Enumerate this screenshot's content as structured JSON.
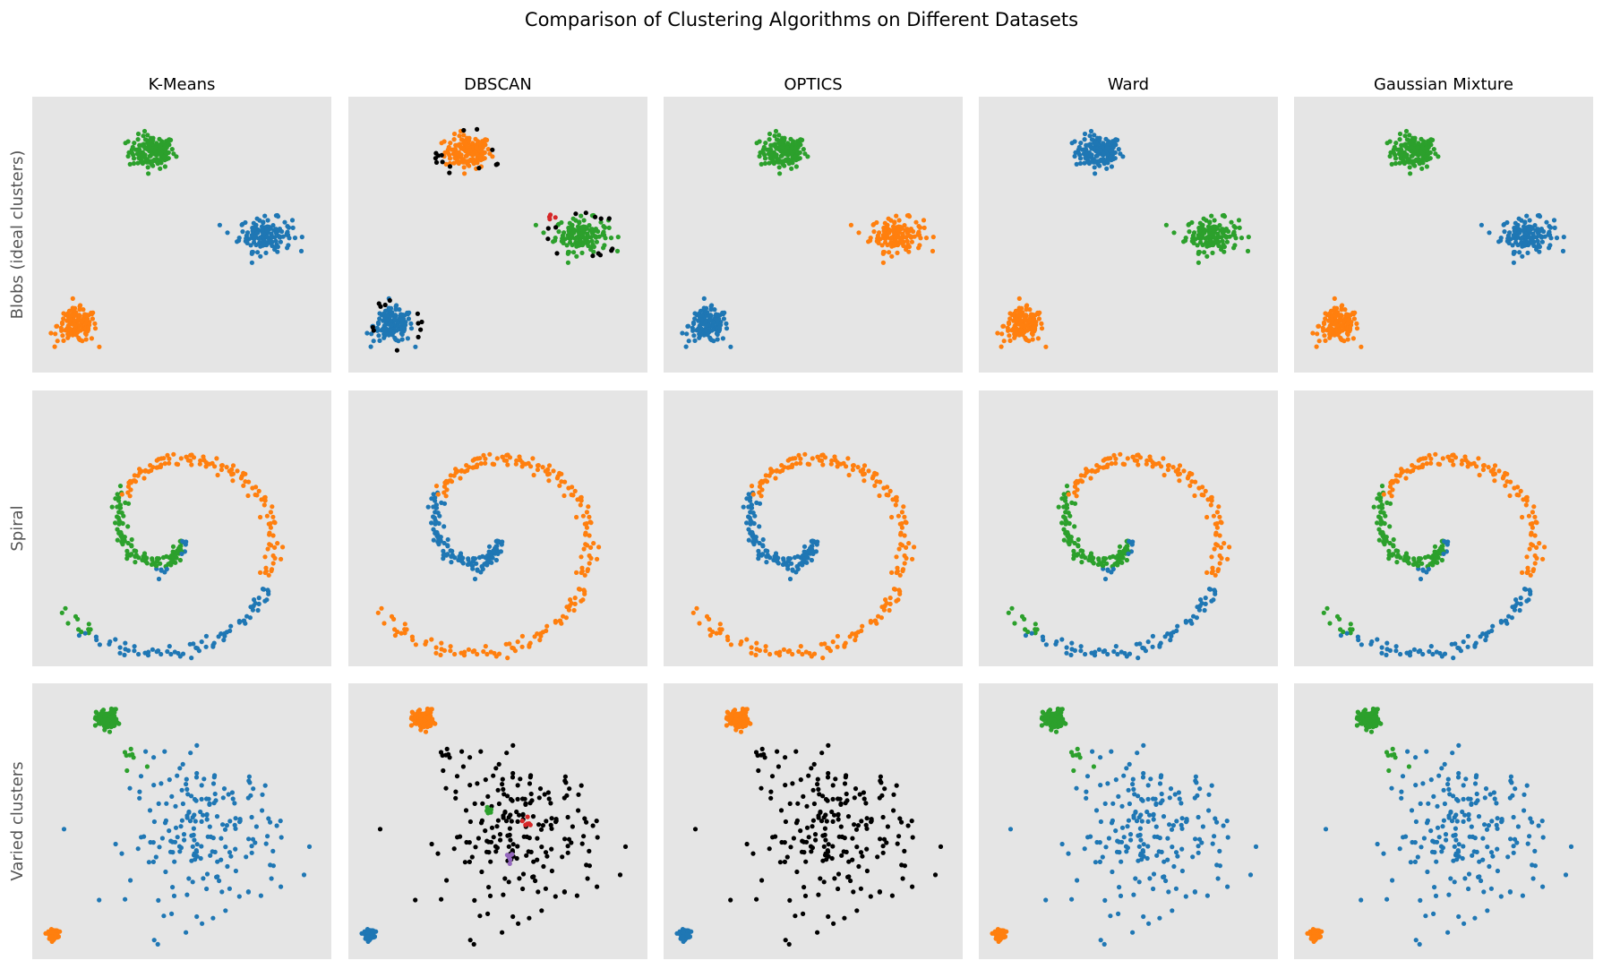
{
  "title": "Comparison of Clustering Algorithms on Different Datasets",
  "chart_data": {
    "type": "scatter",
    "layout": "grid of small multiples, 3 rows x 5 columns, no axes or ticks, light gray panel background",
    "title": "Comparison of Clustering Algorithms on Different Datasets",
    "algorithms": [
      "K-Means",
      "DBSCAN",
      "OPTICS",
      "Ward",
      "Gaussian Mixture"
    ],
    "datasets": [
      "Blobs (ideal clusters)",
      "Spiral",
      "Varied clusters"
    ],
    "colors": {
      "panel_background": "#e5e5e5",
      "blue": "#1f77b4",
      "orange": "#ff7f0e",
      "green": "#2ca02c",
      "red": "#d62728",
      "purple": "#9467bd",
      "noise": "#000000",
      "row_label": "#555555"
    },
    "approx_structure": {
      "Blobs (ideal clusters)": {
        "groups": [
          {
            "center": [
              0.4,
              0.8
            ],
            "spread": [
              0.07,
              0.05
            ],
            "n": 150
          },
          {
            "center": [
              0.78,
              0.5
            ],
            "spread": [
              0.08,
              0.05
            ],
            "n": 150
          },
          {
            "center": [
              0.15,
              0.17
            ],
            "spread": [
              0.06,
              0.05
            ],
            "n": 150
          }
        ],
        "labels": {
          "K-Means": [
            "green",
            "blue",
            "orange"
          ],
          "DBSCAN": [
            "orange",
            "green",
            "blue"
          ],
          "OPTICS": [
            "green",
            "orange",
            "blue"
          ],
          "Ward": [
            "blue",
            "green",
            "orange"
          ],
          "Gaussian Mixture": [
            "green",
            "blue",
            "orange"
          ]
        },
        "extra": {
          "DBSCAN": [
            {
              "color": "noise",
              "around": 0,
              "n": 14
            },
            {
              "color": "noise",
              "around": 1,
              "n": 14
            },
            {
              "color": "noise",
              "around": 2,
              "n": 12
            },
            {
              "color": "red",
              "center": [
                0.68,
                0.57
              ],
              "n": 4
            }
          ]
        }
      },
      "Spiral": {
        "inner_arm_color": {
          "K-Means": "green/blue split",
          "DBSCAN": "blue",
          "OPTICS": "blue",
          "Ward": "green/blue split",
          "Gaussian Mixture": "green/blue split"
        },
        "outer_arm_color": {
          "K-Means": "green left, blue bottom, orange right/top",
          "DBSCAN": "orange",
          "OPTICS": "orange",
          "Ward": "green left, blue bottom, orange right/top",
          "Gaussian Mixture": "green left, blue bottom, orange right/top"
        }
      },
      "Varied clusters": {
        "groups": [
          {
            "name": "tight top-left",
            "center": [
              0.25,
              0.87
            ],
            "spread": [
              0.025,
              0.025
            ],
            "n": 120
          },
          {
            "name": "tiny bottom-left",
            "center": [
              0.07,
              0.09
            ],
            "spread": [
              0.012,
              0.012
            ],
            "n": 80
          },
          {
            "name": "wide sparse",
            "center": [
              0.58,
              0.45
            ],
            "spread": [
              0.14,
              0.15
            ],
            "n": 200
          }
        ],
        "labels": {
          "K-Means": [
            "green",
            "orange",
            "blue"
          ],
          "DBSCAN": [
            "orange",
            "blue",
            "noise"
          ],
          "OPTICS": [
            "orange",
            "blue",
            "noise"
          ],
          "Ward": [
            "green",
            "orange",
            "blue"
          ],
          "Gaussian Mixture": [
            "green",
            "orange",
            "blue"
          ]
        },
        "extra": {
          "DBSCAN": [
            {
              "color": "green",
              "center": [
                0.47,
                0.54
              ],
              "n": 6
            },
            {
              "color": "red",
              "center": [
                0.59,
                0.49
              ],
              "n": 6
            },
            {
              "color": "purple",
              "center": [
                0.54,
                0.37
              ],
              "n": 6
            }
          ]
        }
      }
    },
    "grid": false,
    "axes_visible": false,
    "legend": "none"
  }
}
